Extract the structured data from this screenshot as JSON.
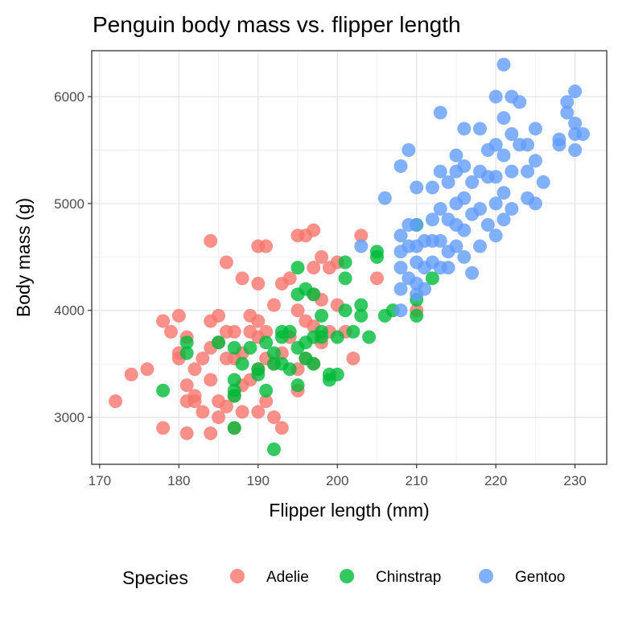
{
  "chart_data": {
    "type": "scatter",
    "title": "Penguin body mass vs. flipper length",
    "xlabel": "Flipper length (mm)",
    "ylabel": "Body mass (g)",
    "xlim": [
      169,
      234
    ],
    "ylim": [
      2560,
      6430
    ],
    "xticks": [
      170,
      180,
      190,
      200,
      210,
      220,
      230
    ],
    "yticks": [
      3000,
      4000,
      5000,
      6000
    ],
    "grid": true,
    "legend": {
      "title": "Species",
      "position": "bottom"
    },
    "series": [
      {
        "name": "Adelie",
        "color": "#F8766D",
        "points": [
          [
            172,
            3150
          ],
          [
            174,
            3400
          ],
          [
            176,
            3450
          ],
          [
            178,
            3900
          ],
          [
            178,
            2900
          ],
          [
            179,
            3800
          ],
          [
            180,
            3950
          ],
          [
            180,
            3600
          ],
          [
            180,
            3550
          ],
          [
            181,
            3750
          ],
          [
            181,
            3300
          ],
          [
            181,
            2850
          ],
          [
            181,
            3150
          ],
          [
            182,
            3200
          ],
          [
            182,
            3150
          ],
          [
            182,
            3450
          ],
          [
            183,
            3050
          ],
          [
            183,
            3550
          ],
          [
            184,
            4650
          ],
          [
            184,
            3900
          ],
          [
            184,
            3650
          ],
          [
            184,
            3350
          ],
          [
            184,
            2850
          ],
          [
            185,
            3950
          ],
          [
            185,
            3700
          ],
          [
            185,
            3150
          ],
          [
            185,
            3000
          ],
          [
            186,
            4450
          ],
          [
            186,
            3800
          ],
          [
            186,
            3550
          ],
          [
            186,
            3100
          ],
          [
            187,
            3800
          ],
          [
            187,
            3550
          ],
          [
            187,
            3200
          ],
          [
            187,
            2900
          ],
          [
            188,
            4300
          ],
          [
            188,
            3600
          ],
          [
            188,
            3300
          ],
          [
            188,
            3050
          ],
          [
            189,
            3950
          ],
          [
            189,
            3800
          ],
          [
            189,
            3350
          ],
          [
            190,
            4600
          ],
          [
            190,
            4250
          ],
          [
            190,
            3900
          ],
          [
            190,
            3750
          ],
          [
            190,
            3450
          ],
          [
            190,
            3050
          ],
          [
            191,
            4600
          ],
          [
            191,
            3800
          ],
          [
            191,
            3550
          ],
          [
            191,
            3150
          ],
          [
            192,
            4050
          ],
          [
            192,
            3500
          ],
          [
            192,
            3000
          ],
          [
            193,
            4250
          ],
          [
            193,
            3600
          ],
          [
            193,
            2900
          ],
          [
            194,
            4300
          ],
          [
            194,
            3750
          ],
          [
            195,
            4700
          ],
          [
            195,
            4000
          ],
          [
            195,
            3450
          ],
          [
            195,
            3250
          ],
          [
            196,
            4700
          ],
          [
            196,
            3900
          ],
          [
            196,
            3550
          ],
          [
            197,
            4750
          ],
          [
            197,
            4400
          ],
          [
            197,
            4150
          ],
          [
            197,
            3850
          ],
          [
            197,
            3500
          ],
          [
            198,
            4500
          ],
          [
            198,
            4100
          ],
          [
            198,
            3700
          ],
          [
            199,
            4400
          ],
          [
            199,
            3800
          ],
          [
            200,
            4450
          ],
          [
            200,
            4050
          ],
          [
            201,
            3800
          ],
          [
            202,
            3550
          ],
          [
            203,
            4700
          ],
          [
            205,
            4300
          ],
          [
            210,
            4000
          ]
        ]
      },
      {
        "name": "Chinstrap",
        "color": "#00BA38",
        "points": [
          [
            178,
            3250
          ],
          [
            181,
            3700
          ],
          [
            181,
            3600
          ],
          [
            185,
            3700
          ],
          [
            187,
            3650
          ],
          [
            187,
            3350
          ],
          [
            187,
            3250
          ],
          [
            187,
            3200
          ],
          [
            187,
            2900
          ],
          [
            188,
            3500
          ],
          [
            189,
            3650
          ],
          [
            190,
            3450
          ],
          [
            190,
            3400
          ],
          [
            191,
            3700
          ],
          [
            191,
            3250
          ],
          [
            192,
            3600
          ],
          [
            192,
            3500
          ],
          [
            192,
            2700
          ],
          [
            193,
            3800
          ],
          [
            193,
            3750
          ],
          [
            193,
            3500
          ],
          [
            194,
            3800
          ],
          [
            194,
            3450
          ],
          [
            195,
            4400
          ],
          [
            195,
            4150
          ],
          [
            195,
            3650
          ],
          [
            195,
            3300
          ],
          [
            196,
            4200
          ],
          [
            196,
            3700
          ],
          [
            196,
            3550
          ],
          [
            197,
            4150
          ],
          [
            197,
            3750
          ],
          [
            197,
            3500
          ],
          [
            198,
            3750
          ],
          [
            198,
            3950
          ],
          [
            198,
            3800
          ],
          [
            199,
            3400
          ],
          [
            199,
            3350
          ],
          [
            200,
            3400
          ],
          [
            200,
            3750
          ],
          [
            201,
            4450
          ],
          [
            201,
            4300
          ],
          [
            201,
            4000
          ],
          [
            202,
            3800
          ],
          [
            203,
            4050
          ],
          [
            203,
            3950
          ],
          [
            204,
            3750
          ],
          [
            205,
            4550
          ],
          [
            205,
            4500
          ],
          [
            206,
            3950
          ],
          [
            207,
            4000
          ],
          [
            210,
            4800
          ],
          [
            210,
            4100
          ],
          [
            210,
            3950
          ],
          [
            212,
            4300
          ]
        ]
      },
      {
        "name": "Gentoo",
        "color": "#619CFF",
        "points": [
          [
            203,
            4600
          ],
          [
            206,
            5050
          ],
          [
            208,
            5350
          ],
          [
            208,
            4700
          ],
          [
            208,
            4550
          ],
          [
            208,
            4400
          ],
          [
            208,
            4200
          ],
          [
            208,
            4000
          ],
          [
            209,
            5500
          ],
          [
            209,
            4800
          ],
          [
            209,
            4600
          ],
          [
            209,
            4300
          ],
          [
            210,
            5150
          ],
          [
            210,
            4800
          ],
          [
            210,
            4600
          ],
          [
            210,
            4450
          ],
          [
            210,
            4250
          ],
          [
            210,
            4150
          ],
          [
            211,
            4650
          ],
          [
            211,
            4400
          ],
          [
            211,
            4200
          ],
          [
            212,
            5150
          ],
          [
            212,
            4850
          ],
          [
            212,
            4650
          ],
          [
            212,
            4450
          ],
          [
            213,
            5850
          ],
          [
            213,
            5300
          ],
          [
            213,
            4950
          ],
          [
            213,
            4650
          ],
          [
            213,
            4400
          ],
          [
            214,
            5200
          ],
          [
            214,
            4850
          ],
          [
            214,
            4550
          ],
          [
            214,
            4400
          ],
          [
            215,
            5450
          ],
          [
            215,
            5300
          ],
          [
            215,
            5000
          ],
          [
            215,
            4800
          ],
          [
            215,
            4600
          ],
          [
            216,
            5700
          ],
          [
            216,
            5350
          ],
          [
            216,
            5050
          ],
          [
            216,
            4750
          ],
          [
            216,
            4500
          ],
          [
            217,
            5200
          ],
          [
            217,
            4900
          ],
          [
            217,
            4350
          ],
          [
            218,
            5700
          ],
          [
            218,
            5300
          ],
          [
            218,
            4950
          ],
          [
            218,
            4600
          ],
          [
            219,
            5500
          ],
          [
            219,
            5250
          ],
          [
            219,
            4800
          ],
          [
            220,
            6000
          ],
          [
            220,
            5550
          ],
          [
            220,
            5250
          ],
          [
            220,
            5000
          ],
          [
            220,
            4700
          ],
          [
            221,
            6300
          ],
          [
            221,
            5800
          ],
          [
            221,
            5450
          ],
          [
            221,
            5100
          ],
          [
            221,
            4850
          ],
          [
            222,
            6000
          ],
          [
            222,
            5650
          ],
          [
            222,
            5300
          ],
          [
            222,
            4950
          ],
          [
            223,
            5950
          ],
          [
            223,
            5550
          ],
          [
            224,
            5550
          ],
          [
            224,
            5300
          ],
          [
            224,
            5050
          ],
          [
            225,
            5700
          ],
          [
            225,
            5400
          ],
          [
            225,
            5000
          ],
          [
            226,
            5200
          ],
          [
            228,
            5600
          ],
          [
            228,
            5550
          ],
          [
            229,
            5950
          ],
          [
            229,
            5850
          ],
          [
            230,
            6050
          ],
          [
            230,
            5750
          ],
          [
            230,
            5650
          ],
          [
            230,
            5500
          ],
          [
            231,
            5650
          ]
        ]
      }
    ]
  }
}
